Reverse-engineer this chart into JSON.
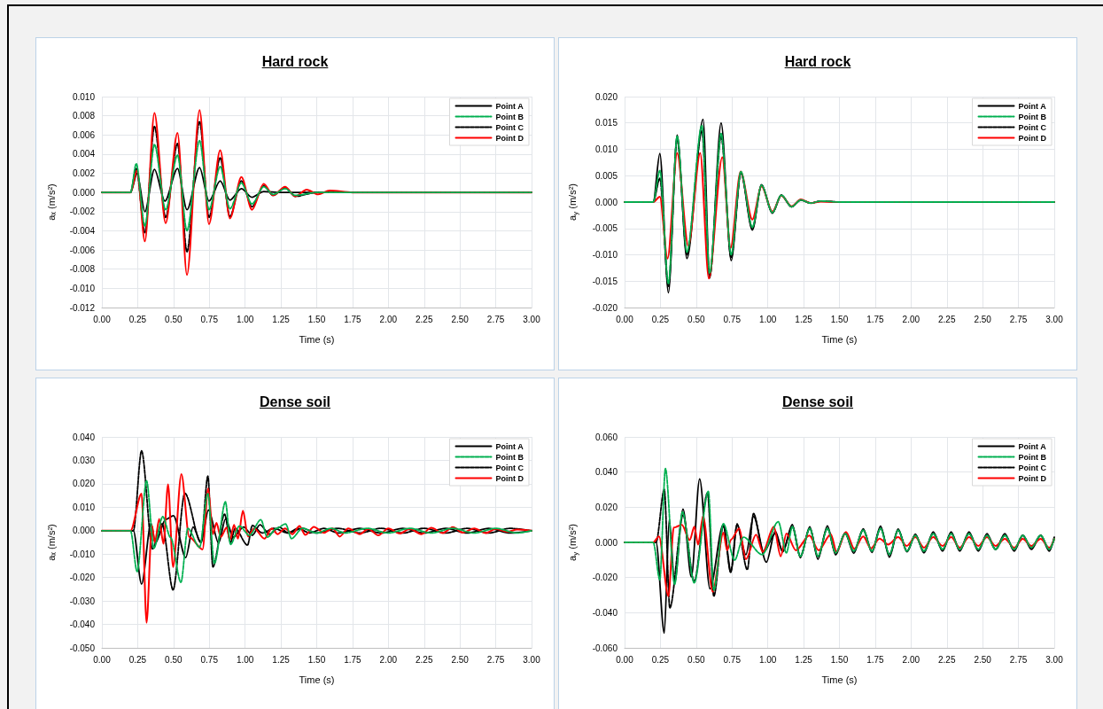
{
  "chart_data": [
    {
      "type": "line",
      "title": "Hard rock",
      "xlabel": "Time (s)",
      "ylabel": "aₓ (m/s²)",
      "xlim": [
        0,
        3
      ],
      "ylim": [
        -0.012,
        0.01
      ],
      "grid": true,
      "legend": "top right",
      "marker": "none",
      "xticks": [
        {
          "value": 0,
          "label": "0.00"
        },
        0.25,
        {
          "value": 0.5,
          "label": "0.50"
        },
        0.75,
        {
          "value": 1,
          "label": "1.00"
        },
        1.25,
        {
          "value": 1.5,
          "label": "1.50"
        },
        1.75,
        {
          "value": 2,
          "label": "2.00"
        },
        2.25,
        {
          "value": 2.5,
          "label": "2.50"
        },
        2.75,
        {
          "value": 3,
          "label": "3.00"
        }
      ],
      "yticks": [
        {
          "value": 0.01,
          "label": "0.010"
        },
        {
          "value": 0.008,
          "label": "0.008"
        },
        {
          "value": 0.006,
          "label": "0.006"
        },
        {
          "value": 0.004,
          "label": "0.004"
        },
        {
          "value": 0.002,
          "label": "0.002"
        },
        {
          "value": 0,
          "label": "0.000"
        },
        {
          "value": -0.002,
          "label": "-0.002"
        },
        {
          "value": -0.004,
          "label": "-0.004"
        },
        {
          "value": -0.006,
          "label": "-0.006"
        },
        {
          "value": -0.008,
          "label": "-0.008"
        },
        {
          "value": -0.01,
          "label": "-0.010"
        },
        {
          "value": -0.012,
          "label": "-0.012"
        }
      ],
      "series": [
        {
          "name": "Point A",
          "color": "#000000",
          "line_style": "solid",
          "x": [
            0,
            0.2,
            0.246,
            0.3,
            0.367,
            0.44,
            0.528,
            0.594,
            0.682,
            0.748,
            0.826,
            0.894,
            0.974,
            1.048,
            1.13,
            1.25,
            3.0
          ],
          "values": [
            0,
            0,
            0.002,
            -0.002,
            0.0024,
            -0.0009,
            0.0025,
            -0.0018,
            0.0026,
            -0.0009,
            0.0012,
            -0.0008,
            0.0004,
            -0.0005,
            0.0001,
            0,
            0
          ]
        },
        {
          "name": "Point B",
          "color": "#00b050",
          "line_style": "dashed",
          "x": [
            0,
            0.2,
            0.24,
            0.3,
            0.367,
            0.445,
            0.528,
            0.594,
            0.682,
            0.748,
            0.826,
            0.894,
            0.974,
            1.048,
            1.13,
            1.196,
            1.279,
            1.35,
            1.5,
            3.0
          ],
          "values": [
            0,
            0,
            0.003,
            -0.0035,
            0.005,
            -0.0018,
            0.0039,
            -0.004,
            0.0054,
            -0.0018,
            0.0027,
            -0.0017,
            0.001,
            -0.0012,
            0.0006,
            -0.0002,
            0.0004,
            -0.0003,
            0,
            0
          ]
        },
        {
          "name": "Point C",
          "color": "#000000",
          "line_style": "dashed",
          "x": [
            0,
            0.2,
            0.24,
            0.3,
            0.367,
            0.445,
            0.528,
            0.594,
            0.682,
            0.748,
            0.826,
            0.894,
            0.974,
            1.048,
            1.13,
            1.196,
            1.279,
            1.35,
            1.5,
            3.0
          ],
          "values": [
            0,
            0,
            0.0025,
            -0.0042,
            0.0069,
            -0.0026,
            0.0051,
            -0.0062,
            0.0074,
            -0.0026,
            0.0036,
            -0.0025,
            0.0012,
            -0.0015,
            0.0007,
            -0.0003,
            0.0005,
            -0.0004,
            0,
            0
          ]
        },
        {
          "name": "Point D",
          "color": "#ff0000",
          "line_style": "solid",
          "x": [
            0,
            0.2,
            0.246,
            0.3,
            0.367,
            0.445,
            0.528,
            0.594,
            0.682,
            0.748,
            0.826,
            0.894,
            0.974,
            1.048,
            1.13,
            1.196,
            1.279,
            1.35,
            1.43,
            1.51,
            1.59,
            1.75,
            3.0
          ],
          "values": [
            0,
            0,
            0.0023,
            -0.0051,
            0.0083,
            -0.0032,
            0.0062,
            -0.0086,
            0.0086,
            -0.0033,
            0.0044,
            -0.0027,
            0.0016,
            -0.0018,
            0.0009,
            -0.0003,
            0.0006,
            -0.0004,
            0.0003,
            -0.0002,
            0.0002,
            0,
            0
          ]
        }
      ]
    },
    {
      "type": "line",
      "title": "Hard rock",
      "xlabel": "Time (s)",
      "ylabel": "a$_{y}$ (m/s²)",
      "xlim": [
        0,
        3
      ],
      "ylim": [
        -0.02,
        0.02
      ],
      "grid": true,
      "legend": "top right",
      "marker": "none",
      "xticks": [
        {
          "value": 0,
          "label": "0.00"
        },
        0.25,
        {
          "value": 0.5,
          "label": "0.50"
        },
        0.75,
        {
          "value": 1,
          "label": "1.00"
        },
        1.25,
        {
          "value": 1.5,
          "label": "1.50"
        },
        1.75,
        {
          "value": 2,
          "label": "2.00"
        },
        2.25,
        {
          "value": 2.5,
          "label": "2.50"
        },
        2.75,
        {
          "value": 3,
          "label": "3.00"
        }
      ],
      "yticks": [
        {
          "value": 0.02,
          "label": "0.020"
        },
        {
          "value": 0.015,
          "label": "0.015"
        },
        {
          "value": 0.01,
          "label": "0.010"
        },
        {
          "value": 0.005,
          "label": "0.005"
        },
        {
          "value": 0,
          "label": "0.000"
        },
        {
          "value": -0.005,
          "label": "-0.005"
        },
        {
          "value": -0.01,
          "label": "-0.010"
        },
        {
          "value": -0.015,
          "label": "-0.015"
        },
        {
          "value": -0.02,
          "label": "-0.020"
        }
      ],
      "series": [
        {
          "name": "Point A",
          "color": "#000000",
          "line_style": "solid",
          "x": [
            0,
            0.2,
            0.246,
            0.306,
            0.367,
            0.435,
            0.548,
            0.594,
            0.674,
            0.744,
            0.812,
            0.892,
            0.956,
            1.032,
            1.094,
            1.166,
            1.23,
            1.3,
            1.37,
            1.5,
            3.0
          ],
          "values": [
            0,
            0,
            0.0092,
            -0.0172,
            0.0127,
            -0.0107,
            0.0157,
            -0.0144,
            0.015,
            -0.0111,
            0.0056,
            -0.0053,
            0.0033,
            -0.0021,
            0.0013,
            -0.0009,
            0.0004,
            -0.0002,
            0.0002,
            0,
            0
          ]
        },
        {
          "name": "Point B",
          "color": "#00b050",
          "line_style": "dashed",
          "x": [
            0,
            0.2,
            0.246,
            0.306,
            0.367,
            0.435,
            0.54,
            0.594,
            0.674,
            0.744,
            0.812,
            0.892,
            0.956,
            1.032,
            1.094,
            1.166,
            1.23,
            1.3,
            1.37,
            1.5,
            3.0
          ],
          "values": [
            0,
            0,
            0.006,
            -0.0155,
            0.0125,
            -0.0095,
            0.0145,
            -0.0135,
            0.013,
            -0.01,
            0.0058,
            -0.0048,
            0.0032,
            -0.002,
            0.0013,
            -0.0009,
            0.0004,
            -0.0002,
            0.0002,
            0,
            0
          ]
        },
        {
          "name": "Point C",
          "color": "#000000",
          "line_style": "dashed",
          "x": [
            0,
            0.2,
            0.246,
            0.306,
            0.367,
            0.435,
            0.54,
            0.594,
            0.674,
            0.744,
            0.812,
            0.892,
            0.956,
            1.032,
            1.094,
            1.166,
            1.23,
            1.3,
            1.37,
            1.5,
            3.0
          ],
          "values": [
            0,
            0,
            0.0045,
            -0.016,
            0.012,
            -0.01,
            0.0135,
            -0.014,
            0.0125,
            -0.0105,
            0.0055,
            -0.005,
            0.0032,
            -0.002,
            0.0013,
            -0.0009,
            0.0004,
            -0.0002,
            0.0002,
            0,
            0
          ]
        },
        {
          "name": "Point D",
          "color": "#ff0000",
          "line_style": "solid",
          "x": [
            0,
            0.2,
            0.246,
            0.3,
            0.367,
            0.445,
            0.528,
            0.588,
            0.682,
            0.74,
            0.81,
            0.892,
            0.956,
            1.032,
            1.094,
            1.166,
            1.23,
            1.3,
            1.37,
            1.5,
            3.0
          ],
          "values": [
            0,
            0,
            0.001,
            -0.0107,
            0.0093,
            -0.0083,
            0.0093,
            -0.0145,
            0.0085,
            -0.0087,
            0.0058,
            -0.0033,
            0.003,
            -0.0018,
            0.0012,
            -0.0008,
            0.0005,
            -0.0002,
            0.0001,
            0,
            0
          ]
        }
      ]
    },
    {
      "type": "line",
      "title": "Dense soil",
      "xlabel": "Time (s)",
      "ylabel": "aₓ (m/s²)",
      "xlim": [
        0,
        3
      ],
      "ylim": [
        -0.05,
        0.04
      ],
      "grid": true,
      "legend": "top right",
      "marker": "none",
      "xticks": [
        {
          "value": 0,
          "label": "0.00"
        },
        0.25,
        {
          "value": 0.5,
          "label": "0.50"
        },
        0.75,
        {
          "value": 1,
          "label": "1.00"
        },
        1.25,
        {
          "value": 1.5,
          "label": "1.50"
        },
        1.75,
        {
          "value": 2,
          "label": "2.00"
        },
        2.25,
        {
          "value": 2.5,
          "label": "2.50"
        },
        2.75,
        {
          "value": 3,
          "label": "3.00"
        }
      ],
      "yticks": [
        {
          "value": 0.04,
          "label": "0.040"
        },
        {
          "value": 0.03,
          "label": "0.030"
        },
        {
          "value": 0.02,
          "label": "0.020"
        },
        {
          "value": 0.01,
          "label": "0.010"
        },
        {
          "value": 0,
          "label": "0.000"
        },
        {
          "value": -0.01,
          "label": "-0.010"
        },
        {
          "value": -0.02,
          "label": "-0.020"
        },
        {
          "value": -0.03,
          "label": "-0.030"
        },
        {
          "value": -0.04,
          "label": "-0.040"
        },
        {
          "value": -0.05,
          "label": "-0.050"
        }
      ],
      "series": [
        {
          "name": "Point A",
          "color": "#000000",
          "line_style": "solid",
          "x": [
            0,
            0.22,
            0.277,
            0.343,
            0.373,
            0.445,
            0.5,
            0.585,
            0.637,
            0.692,
            0.744,
            0.815,
            0.863,
            0.918,
            0.99,
            1.05,
            1.104,
            1.17,
            1.24,
            1.3,
            1.37,
            1.45,
            1.55,
            1.65,
            1.8,
            1.95,
            2.1,
            2.25,
            2.4,
            2.55,
            2.7,
            2.85,
            3.0
          ],
          "values": [
            0,
            0,
            -0.0228,
            0.0031,
            -0.0053,
            0.0048,
            0.0064,
            -0.0115,
            0.0016,
            -0.005,
            0.0088,
            -0.0053,
            0.005,
            -0.0028,
            0.0016,
            -0.002,
            0.0025,
            -0.0015,
            0.0015,
            -0.001,
            0.001,
            -0.001,
            0.001,
            -0.001,
            0.001,
            -0.001,
            0.001,
            -0.001,
            0.001,
            -0.001,
            0.001,
            -0.001,
            0
          ]
        },
        {
          "name": "Point B",
          "color": "#00b050",
          "line_style": "dashed",
          "x": [
            0,
            0.2,
            0.246,
            0.312,
            0.363,
            0.425,
            0.48,
            0.552,
            0.6,
            0.682,
            0.74,
            0.785,
            0.863,
            0.898,
            0.96,
            1.03,
            1.11,
            1.155,
            1.22,
            1.283,
            1.324,
            1.4,
            1.5,
            1.6,
            1.7,
            1.85,
            2.0,
            2.15,
            2.3,
            2.45,
            2.6,
            2.75,
            2.9,
            3.0
          ],
          "values": [
            0,
            0,
            -0.0175,
            0.0213,
            -0.0075,
            0.006,
            -0.003,
            -0.0221,
            0.001,
            -0.0071,
            0.0158,
            -0.014,
            0.0123,
            -0.0059,
            0.002,
            -0.002,
            0.0047,
            -0.0028,
            0.001,
            0.0029,
            -0.0034,
            0.001,
            -0.001,
            0.001,
            -0.001,
            0.001,
            -0.001,
            0.001,
            -0.001,
            0.001,
            -0.001,
            0.001,
            -0.001,
            0
          ]
        },
        {
          "name": "Point C",
          "color": "#000000",
          "line_style": "dashed",
          "x": [
            0,
            0.22,
            0.277,
            0.353,
            0.42,
            0.497,
            0.579,
            0.692,
            0.74,
            0.775,
            0.857,
            0.898,
            0.93,
            1.017,
            1.05,
            1.12,
            1.2,
            1.3,
            1.4,
            1.5,
            1.65,
            1.8,
            1.95,
            2.1,
            2.25,
            2.4,
            2.55,
            2.7,
            2.85,
            3.0
          ],
          "values": [
            0,
            0,
            0.0341,
            -0.0078,
            0.003,
            -0.0253,
            0.016,
            -0.0052,
            0.0233,
            -0.0155,
            0.007,
            -0.005,
            0.001,
            -0.0062,
            0.0022,
            -0.001,
            0.001,
            -0.001,
            0.001,
            -0.001,
            0.001,
            -0.001,
            0.001,
            -0.001,
            0.001,
            -0.001,
            0.001,
            -0.001,
            0.001,
            0
          ]
        },
        {
          "name": "Point D",
          "color": "#ff0000",
          "line_style": "solid",
          "x": [
            0,
            0.2,
            0.277,
            0.312,
            0.349,
            0.37,
            0.4,
            0.43,
            0.462,
            0.497,
            0.555,
            0.61,
            0.703,
            0.742,
            0.775,
            0.8,
            0.83,
            0.871,
            0.894,
            0.923,
            0.95,
            0.985,
            1.02,
            1.063,
            1.135,
            1.186,
            1.227,
            1.279,
            1.33,
            1.38,
            1.42,
            1.48,
            1.55,
            1.61,
            1.66,
            1.72,
            1.8,
            1.86,
            1.93,
            2.0,
            2.08,
            2.15,
            2.23,
            2.3,
            2.38,
            2.45,
            2.52,
            2.6,
            2.68,
            2.75,
            2.83,
            2.9,
            3.0
          ],
          "values": [
            0,
            0,
            0.0158,
            -0.0393,
            0.0023,
            -0.005,
            0.005,
            -0.0056,
            0.0198,
            -0.0155,
            0.0241,
            -0.0027,
            -0.008,
            0.0181,
            -0.0015,
            0.0033,
            -0.0027,
            0.0013,
            -0.004,
            0.0025,
            -0.0034,
            0.0085,
            -0.0025,
            0.001,
            -0.0034,
            0.001,
            -0.0015,
            0.001,
            -0.0015,
            0.002,
            -0.0018,
            0.0016,
            -0.0009,
            0.001,
            -0.0025,
            0.001,
            -0.0015,
            0.0008,
            -0.002,
            0.001,
            -0.0012,
            0.0008,
            -0.0015,
            0.0012,
            -0.001,
            0.0015,
            -0.0008,
            0.001,
            -0.001,
            0.0008,
            -0.0005,
            0.0005,
            0
          ]
        }
      ]
    },
    {
      "type": "line",
      "title": "Dense soil",
      "xlabel": "Time (s)",
      "ylabel": "a$_{y}$ (m/s²)",
      "xlim": [
        0,
        3
      ],
      "ylim": [
        -0.06,
        0.06
      ],
      "grid": true,
      "legend": "top right",
      "marker": "none",
      "xticks": [
        {
          "value": 0,
          "label": "0.00"
        },
        0.25,
        {
          "value": 0.5,
          "label": "0.50"
        },
        0.75,
        {
          "value": 1,
          "label": "1.00"
        },
        1.25,
        {
          "value": 1.5,
          "label": "1.50"
        },
        1.75,
        {
          "value": 2,
          "label": "2.00"
        },
        2.25,
        {
          "value": 2.5,
          "label": "2.50"
        },
        2.75,
        {
          "value": 3,
          "label": "3.00"
        }
      ],
      "yticks": [
        {
          "value": 0.06,
          "label": "0.060"
        },
        {
          "value": 0.04,
          "label": "0.040"
        },
        {
          "value": 0.02,
          "label": "0.020"
        },
        {
          "value": 0,
          "label": "0.000"
        },
        {
          "value": -0.02,
          "label": "-0.020"
        },
        {
          "value": -0.04,
          "label": "-0.040"
        },
        {
          "value": -0.06,
          "label": "-0.060"
        }
      ],
      "series": [
        {
          "name": "Point A",
          "color": "#000000",
          "line_style": "solid",
          "x": [
            0,
            0.22,
            0.277,
            0.312,
            0.349,
            0.408,
            0.466,
            0.524,
            0.596,
            0.688,
            0.744,
            0.785,
            0.847,
            0.9,
            0.99,
            1.052,
            1.104,
            1.171,
            1.227,
            1.293,
            1.35,
            1.416,
            1.474,
            1.54,
            1.6,
            1.666,
            1.727,
            1.787,
            1.849,
            1.91,
            1.972,
            2.03,
            2.09,
            2.155,
            2.22,
            2.28,
            2.34,
            2.405,
            2.47,
            2.53,
            2.59,
            2.655,
            2.72,
            2.78,
            2.84,
            2.905,
            2.965,
            3.0
          ],
          "values": [
            0,
            0,
            -0.0516,
            0.0131,
            -0.023,
            0.019,
            -0.0197,
            0.0361,
            -0.0264,
            0.01,
            -0.0168,
            0.0106,
            -0.007,
            0.0148,
            -0.0113,
            0.0064,
            -0.0054,
            0.0101,
            -0.0087,
            0.0089,
            -0.0096,
            0.0094,
            -0.0071,
            0.0055,
            -0.0062,
            0.0077,
            -0.0057,
            0.0092,
            -0.0084,
            0.0076,
            -0.0054,
            0.0047,
            -0.006,
            0.006,
            -0.005,
            0.006,
            -0.005,
            0.006,
            -0.005,
            0.005,
            -0.004,
            0.005,
            -0.005,
            0.004,
            -0.004,
            0.004,
            -0.005,
            0.003
          ]
        },
        {
          "name": "Point B",
          "color": "#00b050",
          "line_style": "dashed",
          "x": [
            0,
            0.2,
            0.246,
            0.285,
            0.349,
            0.404,
            0.486,
            0.585,
            0.623,
            0.69,
            0.768,
            0.83,
            0.96,
            1.073,
            1.13,
            1.171,
            1.227,
            1.293,
            1.35,
            1.416,
            1.474,
            1.54,
            1.6,
            1.666,
            1.727,
            1.787,
            1.849,
            1.91,
            1.972,
            2.03,
            2.09,
            2.155,
            2.22,
            2.28,
            2.34,
            2.405,
            2.47,
            2.53,
            2.59,
            2.655,
            2.72,
            2.78,
            2.84,
            2.905,
            2.965,
            3.0
          ],
          "values": [
            0,
            0,
            -0.0213,
            0.042,
            -0.0239,
            0.0173,
            -0.023,
            0.0291,
            -0.0272,
            0.0106,
            -0.0101,
            0.003,
            -0.007,
            0.0118,
            -0.006,
            0.009,
            -0.008,
            0.008,
            -0.008,
            0.008,
            -0.006,
            0.005,
            -0.005,
            0.007,
            -0.005,
            0.008,
            -0.007,
            0.007,
            -0.005,
            0.004,
            -0.005,
            0.005,
            -0.004,
            0.005,
            -0.004,
            0.005,
            -0.004,
            0.004,
            -0.004,
            0.004,
            -0.004,
            0.004,
            -0.003,
            0.004,
            -0.004,
            0.002
          ]
        },
        {
          "name": "Point C",
          "color": "#000000",
          "line_style": "dashed",
          "x": [
            0,
            0.22,
            0.277,
            0.316,
            0.408,
            0.486,
            0.579,
            0.623,
            0.69,
            0.74,
            0.785,
            0.857,
            0.9,
            0.97,
            1.052,
            1.104,
            1.171,
            1.227,
            1.293,
            1.35,
            1.416,
            1.474,
            1.54,
            1.6,
            1.666,
            1.727,
            1.787,
            1.849,
            1.91,
            1.972,
            2.03,
            2.09,
            2.155,
            2.22,
            2.28,
            2.34,
            2.405,
            2.47,
            2.53,
            2.59,
            2.655,
            2.72,
            2.78,
            2.84,
            2.905,
            2.965,
            3.0
          ],
          "values": [
            0,
            0,
            0.0302,
            -0.0373,
            0.0156,
            -0.0222,
            0.0282,
            -0.0306,
            0.0097,
            -0.0171,
            0.01,
            -0.0155,
            0.0165,
            -0.0054,
            0.005,
            -0.005,
            0.009,
            -0.008,
            0.008,
            -0.008,
            0.008,
            -0.006,
            0.005,
            -0.005,
            0.007,
            -0.005,
            0.008,
            -0.007,
            0.007,
            -0.005,
            0.004,
            -0.005,
            0.005,
            -0.004,
            0.005,
            -0.004,
            0.005,
            -0.004,
            0.004,
            -0.004,
            0.004,
            -0.004,
            0.004,
            -0.003,
            0.004,
            -0.004,
            0.002
          ]
        },
        {
          "name": "Point D",
          "color": "#ff0000",
          "line_style": "solid",
          "x": [
            0,
            0.2,
            0.24,
            0.306,
            0.343,
            0.4,
            0.455,
            0.487,
            0.513,
            0.548,
            0.615,
            0.69,
            0.716,
            0.744,
            0.8,
            0.847,
            0.918,
            0.965,
            1.042,
            1.09,
            1.13,
            1.196,
            1.29,
            1.355,
            1.44,
            1.48,
            1.546,
            1.604,
            1.666,
            1.72,
            1.78,
            1.84,
            1.91,
            1.97,
            2.03,
            2.09,
            2.155,
            2.22,
            2.28,
            2.34,
            2.405,
            2.47,
            2.53,
            2.59,
            2.655,
            2.72,
            2.78,
            2.84,
            2.905,
            2.965,
            3.0
          ],
          "values": [
            0,
            0,
            0.0034,
            -0.0306,
            0.0084,
            0.01,
            0.0013,
            0.0089,
            -0.0012,
            0.0148,
            -0.0281,
            0.0055,
            -0.0045,
            0.0017,
            0.008,
            -0.0096,
            0.0044,
            -0.0054,
            0.0089,
            -0.0079,
            0.005,
            -0.0045,
            0.0039,
            -0.0045,
            0.0047,
            -0.0054,
            0.0059,
            -0.0037,
            0.0034,
            -0.0034,
            0.0022,
            -0.0012,
            0.003,
            -0.002,
            0.003,
            -0.003,
            0.003,
            -0.002,
            0.003,
            -0.003,
            0.003,
            -0.002,
            0.003,
            -0.002,
            0.002,
            -0.003,
            0.002,
            -0.002,
            0.002,
            -0.003,
            0.002
          ]
        }
      ]
    }
  ]
}
